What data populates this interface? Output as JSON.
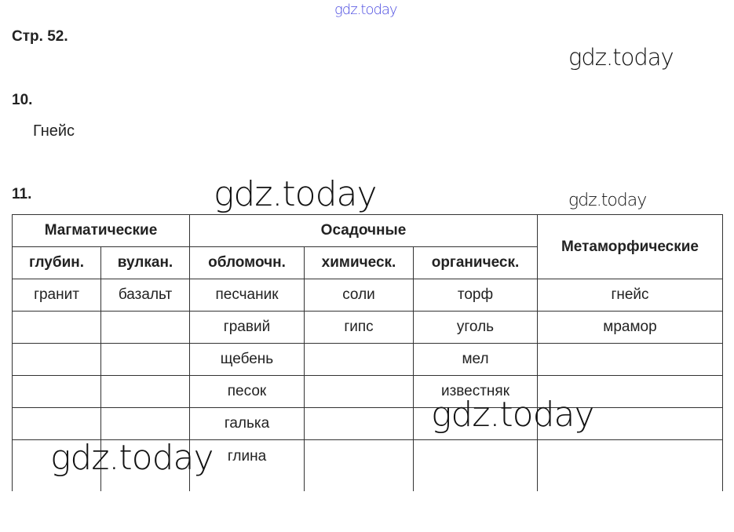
{
  "page_ref": "Стр. 52.",
  "task10": {
    "number": "10.",
    "answer": "Гнейс"
  },
  "task11": {
    "number": "11."
  },
  "table": {
    "groups": [
      "Магматические",
      "Осадочные",
      "Метаморфические"
    ],
    "subheaders": [
      "глубин.",
      "вулкан.",
      "обломочн.",
      "химическ.",
      "органическ."
    ],
    "rows": [
      [
        "гранит",
        "базальт",
        "песчаник",
        "соли",
        "торф",
        "гнейс"
      ],
      [
        "",
        "",
        "гравий",
        "гипс",
        "уголь",
        "мрамор"
      ],
      [
        "",
        "",
        "щебень",
        "",
        "мел",
        ""
      ],
      [
        "",
        "",
        "песок",
        "",
        "известняк",
        ""
      ],
      [
        "",
        "",
        "галька",
        "",
        "",
        ""
      ],
      [
        "",
        "",
        "глина",
        "",
        "",
        ""
      ]
    ]
  },
  "watermarks": [
    "gdz.today",
    "gdz.today",
    "gdz.today",
    "gdz.today",
    "gdz.today",
    "gdz.today"
  ],
  "colors": {
    "top_watermark": "#4a4ae0"
  }
}
